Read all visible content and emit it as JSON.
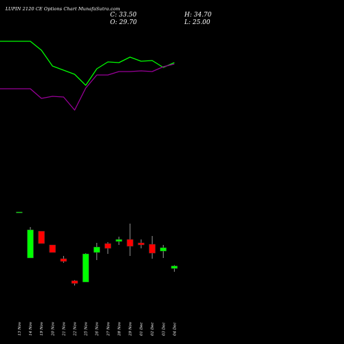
{
  "chart_data": {
    "type": "candlestick",
    "title": "LUPIN 2120 CE Options Chart MunafaSutra.com",
    "ohlc": {
      "close_label": "C: 33.50",
      "open_label": "O: 29.70",
      "high_label": "H: 34.70",
      "low_label": "L: 25.00"
    },
    "categories": [
      "13 Nov",
      "14 Nov",
      "19 Nov",
      "20 Nov",
      "21 Nov",
      "22 Nov",
      "25 Nov",
      "26 Nov",
      "27 Nov",
      "28 Nov",
      "29 Nov",
      "01 Dec",
      "02 Dec",
      "03 Dec",
      "04 Dec"
    ],
    "candles": [
      {
        "date": "13 Nov",
        "open": 112.0,
        "high": 112.0,
        "low": 112.0,
        "close": 112.0
      },
      {
        "date": "14 Nov",
        "open": 45.0,
        "high": 90.0,
        "low": 45.0,
        "close": 86.0
      },
      {
        "date": "19 Nov",
        "open": 84.0,
        "high": 84.0,
        "low": 66.0,
        "close": 66.0
      },
      {
        "date": "20 Nov",
        "open": 64.0,
        "high": 64.0,
        "low": 53.0,
        "close": 53.0
      },
      {
        "date": "21 Nov",
        "open": 44.0,
        "high": 48.0,
        "low": 38.0,
        "close": 40.0
      },
      {
        "date": "22 Nov",
        "open": 12.0,
        "high": 13.0,
        "low": 5.0,
        "close": 8.0
      },
      {
        "date": "25 Nov",
        "open": 10.0,
        "high": 52.0,
        "low": 10.0,
        "close": 51.0
      },
      {
        "date": "26 Nov",
        "open": 53.0,
        "high": 67.0,
        "low": 42.0,
        "close": 61.0
      },
      {
        "date": "27 Nov",
        "open": 66.0,
        "high": 68.0,
        "low": 51.0,
        "close": 59.0
      },
      {
        "date": "28 Nov",
        "open": 69.0,
        "high": 76.0,
        "low": 64.0,
        "close": 72.0
      },
      {
        "date": "29 Nov",
        "open": 72.0,
        "high": 95.0,
        "low": 48.0,
        "close": 62.0
      },
      {
        "date": "01 Dec",
        "open": 67.0,
        "high": 72.0,
        "low": 59.0,
        "close": 64.0
      },
      {
        "date": "02 Dec",
        "open": 65.0,
        "high": 77.0,
        "low": 44.0,
        "close": 52.0
      },
      {
        "date": "03 Dec",
        "open": 55.0,
        "high": 64.0,
        "low": 45.0,
        "close": 60.0
      },
      {
        "date": "04 Dec",
        "open": 29.7,
        "high": 34.7,
        "low": 25.0,
        "close": 33.5
      }
    ],
    "series": [
      {
        "values": [
          360,
          360,
          347,
          324,
          318,
          312,
          296,
          320,
          330,
          329,
          337,
          331,
          332,
          322,
          329
        ]
      },
      {
        "values": [
          291,
          291,
          277,
          280,
          279,
          260,
          292,
          311,
          311,
          316,
          316,
          317,
          316,
          323,
          327
        ]
      }
    ],
    "ylim": [
      0,
      380
    ],
    "colors": {
      "background": "#000000",
      "up": "#00ff00",
      "down": "#ff0000",
      "wick": "#999999",
      "upper_line": "#00ff00",
      "lower_line": "#990099"
    },
    "grid": false,
    "legend": "none"
  }
}
